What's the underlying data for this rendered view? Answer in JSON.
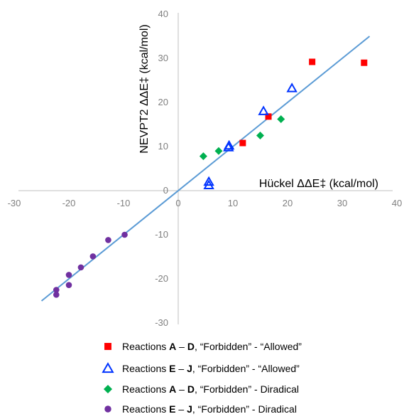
{
  "chart_data": {
    "type": "scatter",
    "xlabel": "Hückel ΔΔE‡ (kcal/mol)",
    "ylabel": "NEVPT2 ΔΔE‡ (kcal/mol)",
    "xlim": [
      -30,
      40
    ],
    "ylim": [
      -30,
      40
    ],
    "x_ticks": [
      "-30",
      "-20",
      "-10",
      "0",
      "10",
      "20",
      "30",
      "40"
    ],
    "y_ticks": [
      "40",
      "30",
      "20",
      "10",
      "0",
      "-10",
      "-20",
      "-30"
    ],
    "grid": false,
    "legend_position": "bottom",
    "fit_line": {
      "x": [
        -25,
        35
      ],
      "y": [
        -25,
        35
      ],
      "color": "#5b9bd5"
    },
    "series": [
      {
        "marker": "square",
        "color": "#ff0000",
        "filled": true,
        "legend": {
          "prefix": "Reactions ",
          "b1": "A",
          "mid": " – ",
          "b2": "D",
          "suffix": ", “Forbidden” - “Allowed”"
        },
        "x": [
          11.8,
          16.5,
          24.5,
          34.0
        ],
        "y": [
          10.8,
          16.8,
          29.2,
          29.0
        ]
      },
      {
        "marker": "triangle",
        "color": "#0033ff",
        "filled": false,
        "legend": {
          "prefix": "Reactions ",
          "b1": "E",
          "mid": " – ",
          "b2": "J",
          "suffix": ", “Forbidden” - “Allowed”"
        },
        "x": [
          5.6,
          5.6,
          9.2,
          9.3,
          15.6,
          20.8
        ],
        "y": [
          1.2,
          2.0,
          9.8,
          10.2,
          18.0,
          23.2
        ]
      },
      {
        "marker": "diamond",
        "color": "#00b050",
        "filled": true,
        "legend": {
          "prefix": "Reactions ",
          "b1": "A",
          "mid": " – ",
          "b2": "D",
          "suffix": ", “Forbidden” - Diradical"
        },
        "x": [
          4.6,
          7.4,
          15.0,
          18.8
        ],
        "y": [
          7.8,
          9.0,
          12.5,
          16.2
        ]
      },
      {
        "marker": "circle",
        "color": "#7030a0",
        "filled": true,
        "legend": {
          "prefix": "Reactions ",
          "b1": "E",
          "mid": " – ",
          "b2": "J",
          "suffix": ", “Forbidden” - Diradical"
        },
        "x": [
          -9.8,
          -12.8,
          -15.6,
          -17.8,
          -20.0,
          -20.0,
          -22.3,
          -22.3
        ],
        "y": [
          -10.0,
          -11.2,
          -14.9,
          -17.4,
          -19.1,
          -21.4,
          -22.5,
          -23.6
        ]
      }
    ]
  }
}
